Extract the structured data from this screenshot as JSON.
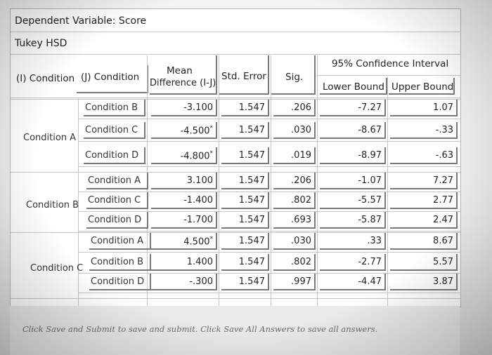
{
  "table": {
    "dependent_variable": "Dependent Variable: Score",
    "method": "Tukey HSD",
    "headers": {
      "i_condition": "(I) Condition",
      "j_condition": "(J) Condition",
      "mean_diff_line1": "Mean",
      "mean_diff_line2": "Difference (I-J)",
      "std_error": "Std. Error",
      "sig": "Sig.",
      "ci": "95% Confidence Interval",
      "lower": "Lower Bound",
      "upper": "Upper Bound"
    },
    "groups": [
      {
        "label": "Condition A",
        "rows": [
          {
            "j": "Condition B",
            "diff": "-3.100",
            "star": "",
            "se": "1.547",
            "sig": ".206",
            "lower": "-7.27",
            "upper": "1.07"
          },
          {
            "j": "Condition C",
            "diff": "-4.500",
            "star": "*",
            "se": "1.547",
            "sig": ".030",
            "lower": "-8.67",
            "upper": "-.33"
          },
          {
            "j": "Condition D",
            "diff": "-4.800",
            "star": "*",
            "se": "1.547",
            "sig": ".019",
            "lower": "-8.97",
            "upper": "-.63"
          }
        ]
      },
      {
        "label": "Condition B",
        "rows": [
          {
            "j": "Condition A",
            "diff": "3.100",
            "star": "",
            "se": "1.547",
            "sig": ".206",
            "lower": "-1.07",
            "upper": "7.27"
          },
          {
            "j": "Condition C",
            "diff": "-1.400",
            "star": "",
            "se": "1.547",
            "sig": ".802",
            "lower": "-5.57",
            "upper": "2.77"
          },
          {
            "j": "Condition D",
            "diff": "-1.700",
            "star": "",
            "se": "1.547",
            "sig": ".693",
            "lower": "-5.87",
            "upper": "2.47"
          }
        ]
      },
      {
        "label": "Condition C",
        "rows": [
          {
            "j": "Condition A",
            "diff": "4.500",
            "star": "*",
            "se": "1.547",
            "sig": ".030",
            "lower": ".33",
            "upper": "8.67"
          },
          {
            "j": "Condition B",
            "diff": "1.400",
            "star": "",
            "se": "1.547",
            "sig": ".802",
            "lower": "-2.77",
            "upper": "5.57"
          },
          {
            "j": "Condition D",
            "diff": "-.300",
            "star": "",
            "se": "1.547",
            "sig": ".997",
            "lower": "-4.47",
            "upper": "3.87"
          }
        ]
      }
    ]
  },
  "footer": {
    "note": "Click Save and Submit to save and submit. Click Save All Answers to save all answers."
  }
}
